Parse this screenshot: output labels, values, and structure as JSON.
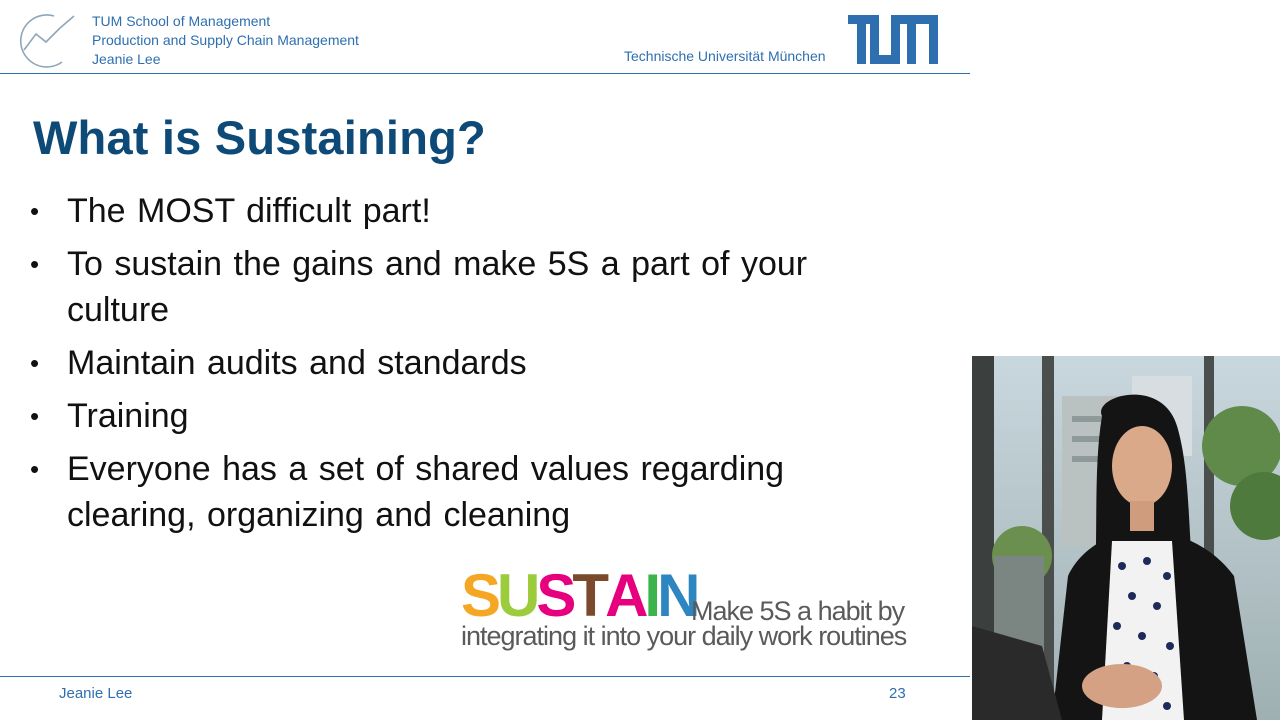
{
  "header": {
    "school": "TUM School of Management",
    "chair": "Production and Supply Chain Management",
    "author": "Jeanie Lee",
    "university": "Technische Universität München"
  },
  "slide": {
    "title": "What is Sustaining?",
    "bullets": [
      "The MOST difficult part!",
      "To sustain the gains and make 5S a part of your culture",
      "Maintain audits and standards",
      "Training",
      "Everyone has a set of shared values regarding clearing, organizing and cleaning"
    ],
    "sustain_graphic": {
      "letters": [
        "S",
        "U",
        "S",
        "T",
        "A",
        "I",
        "N"
      ],
      "letter_colors": [
        "#f5a623",
        "#9ccc3c",
        "#e6007e",
        "#7b4a2c",
        "#e6007e",
        "#3cb44b",
        "#2e86c1"
      ],
      "tagline_line1": "Make 5S a habit by",
      "tagline_line2": "integrating it into your daily work routines"
    }
  },
  "footer": {
    "author": "Jeanie Lee",
    "page_number": "23"
  },
  "colors": {
    "tum_blue": "#2e6fb0",
    "title_blue": "#0d4a78"
  },
  "icons": {
    "chair_logo": "line-chart-circle-icon",
    "university_logo": "tum-logo-icon"
  },
  "video": {
    "content": "presenter webcam feed"
  }
}
